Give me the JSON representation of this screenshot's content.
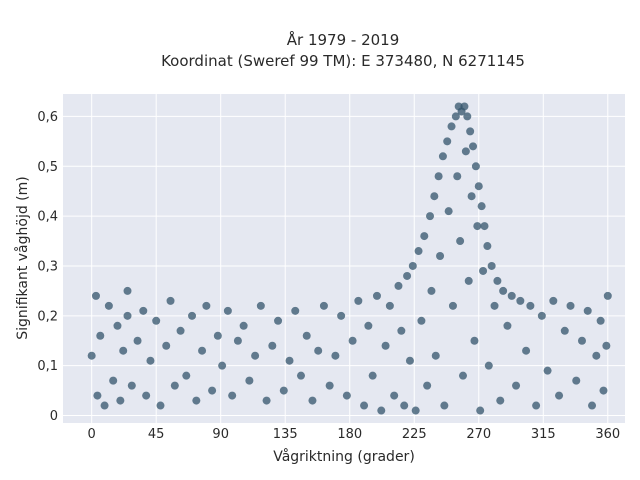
{
  "chart_data": {
    "type": "scatter",
    "title_line1": "År 1979 - 2019",
    "title_line2": "Koordinat (Sweref 99 TM): E 373480, N 6271145",
    "xlabel": "Vågriktning (grader)",
    "ylabel": "Signifikant våghöjd (m)",
    "xlim": [
      -20,
      372
    ],
    "ylim": [
      -0.015,
      0.645
    ],
    "xticks": [
      0,
      45,
      90,
      135,
      180,
      225,
      270,
      315,
      360
    ],
    "xtick_labels": [
      "0",
      "45",
      "90",
      "135",
      "180",
      "225",
      "270",
      "315",
      "360"
    ],
    "yticks": [
      0,
      0.1,
      0.2,
      0.3,
      0.4,
      0.5,
      0.6
    ],
    "ytick_labels": [
      "0",
      "0,1",
      "0,2",
      "0,3",
      "0,4",
      "0,5",
      "0,6"
    ],
    "grid": true,
    "marker_color": "#33546b",
    "plot_background": "#e5e8f1",
    "series": [
      {
        "points": [
          [
            0,
            0.12
          ],
          [
            3,
            0.24
          ],
          [
            4,
            0.04
          ],
          [
            6,
            0.16
          ],
          [
            9,
            0.02
          ],
          [
            12,
            0.22
          ],
          [
            15,
            0.07
          ],
          [
            18,
            0.18
          ],
          [
            20,
            0.03
          ],
          [
            22,
            0.13
          ],
          [
            25,
            0.2
          ],
          [
            25,
            0.25
          ],
          [
            28,
            0.06
          ],
          [
            32,
            0.15
          ],
          [
            36,
            0.21
          ],
          [
            38,
            0.04
          ],
          [
            41,
            0.11
          ],
          [
            45,
            0.19
          ],
          [
            48,
            0.02
          ],
          [
            52,
            0.14
          ],
          [
            55,
            0.23
          ],
          [
            58,
            0.06
          ],
          [
            62,
            0.17
          ],
          [
            66,
            0.08
          ],
          [
            70,
            0.2
          ],
          [
            73,
            0.03
          ],
          [
            77,
            0.13
          ],
          [
            80,
            0.22
          ],
          [
            84,
            0.05
          ],
          [
            88,
            0.16
          ],
          [
            91,
            0.1
          ],
          [
            95,
            0.21
          ],
          [
            98,
            0.04
          ],
          [
            102,
            0.15
          ],
          [
            106,
            0.18
          ],
          [
            110,
            0.07
          ],
          [
            114,
            0.12
          ],
          [
            118,
            0.22
          ],
          [
            122,
            0.03
          ],
          [
            126,
            0.14
          ],
          [
            130,
            0.19
          ],
          [
            134,
            0.05
          ],
          [
            138,
            0.11
          ],
          [
            142,
            0.21
          ],
          [
            146,
            0.08
          ],
          [
            150,
            0.16
          ],
          [
            154,
            0.03
          ],
          [
            158,
            0.13
          ],
          [
            162,
            0.22
          ],
          [
            166,
            0.06
          ],
          [
            170,
            0.12
          ],
          [
            174,
            0.2
          ],
          [
            178,
            0.04
          ],
          [
            182,
            0.15
          ],
          [
            186,
            0.23
          ],
          [
            190,
            0.02
          ],
          [
            193,
            0.18
          ],
          [
            196,
            0.08
          ],
          [
            199,
            0.24
          ],
          [
            202,
            0.01
          ],
          [
            205,
            0.14
          ],
          [
            208,
            0.22
          ],
          [
            211,
            0.04
          ],
          [
            214,
            0.26
          ],
          [
            216,
            0.17
          ],
          [
            218,
            0.02
          ],
          [
            220,
            0.28
          ],
          [
            222,
            0.11
          ],
          [
            224,
            0.3
          ],
          [
            226,
            0.01
          ],
          [
            228,
            0.33
          ],
          [
            230,
            0.19
          ],
          [
            232,
            0.36
          ],
          [
            234,
            0.06
          ],
          [
            236,
            0.4
          ],
          [
            237,
            0.25
          ],
          [
            239,
            0.44
          ],
          [
            240,
            0.12
          ],
          [
            242,
            0.48
          ],
          [
            243,
            0.32
          ],
          [
            245,
            0.52
          ],
          [
            246,
            0.02
          ],
          [
            248,
            0.55
          ],
          [
            249,
            0.41
          ],
          [
            251,
            0.58
          ],
          [
            252,
            0.22
          ],
          [
            254,
            0.6
          ],
          [
            255,
            0.48
          ],
          [
            256,
            0.62
          ],
          [
            257,
            0.35
          ],
          [
            258,
            0.61
          ],
          [
            259,
            0.08
          ],
          [
            260,
            0.62
          ],
          [
            261,
            0.53
          ],
          [
            262,
            0.6
          ],
          [
            263,
            0.27
          ],
          [
            264,
            0.57
          ],
          [
            265,
            0.44
          ],
          [
            266,
            0.54
          ],
          [
            267,
            0.15
          ],
          [
            268,
            0.5
          ],
          [
            269,
            0.38
          ],
          [
            270,
            0.46
          ],
          [
            271,
            0.01
          ],
          [
            272,
            0.42
          ],
          [
            273,
            0.29
          ],
          [
            274,
            0.38
          ],
          [
            276,
            0.34
          ],
          [
            277,
            0.1
          ],
          [
            279,
            0.3
          ],
          [
            281,
            0.22
          ],
          [
            283,
            0.27
          ],
          [
            285,
            0.03
          ],
          [
            287,
            0.25
          ],
          [
            290,
            0.18
          ],
          [
            293,
            0.24
          ],
          [
            296,
            0.06
          ],
          [
            299,
            0.23
          ],
          [
            303,
            0.13
          ],
          [
            306,
            0.22
          ],
          [
            310,
            0.02
          ],
          [
            314,
            0.2
          ],
          [
            318,
            0.09
          ],
          [
            322,
            0.23
          ],
          [
            326,
            0.04
          ],
          [
            330,
            0.17
          ],
          [
            334,
            0.22
          ],
          [
            338,
            0.07
          ],
          [
            342,
            0.15
          ],
          [
            346,
            0.21
          ],
          [
            349,
            0.02
          ],
          [
            352,
            0.12
          ],
          [
            355,
            0.19
          ],
          [
            357,
            0.05
          ],
          [
            359,
            0.14
          ],
          [
            360,
            0.24
          ]
        ]
      }
    ]
  }
}
